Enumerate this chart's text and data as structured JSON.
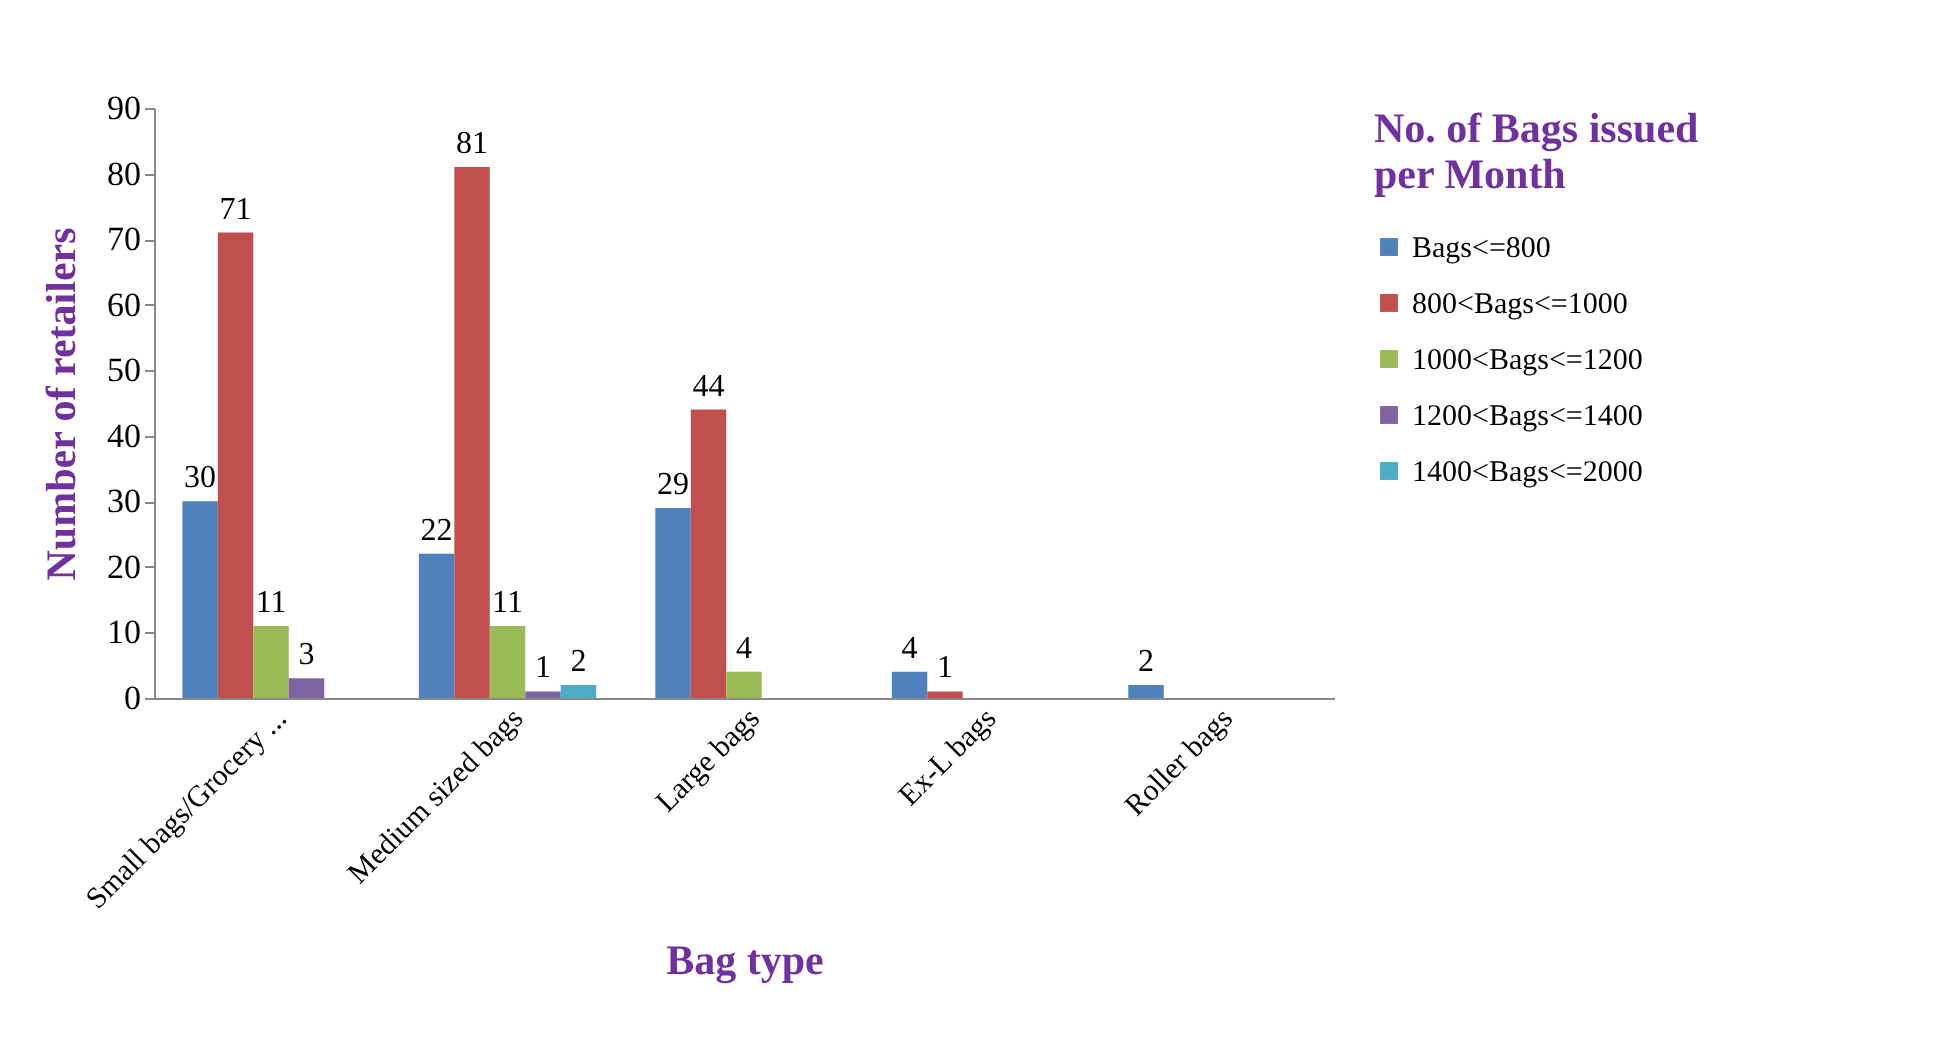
{
  "chart_data": {
    "type": "bar",
    "xlabel": "Bag type",
    "ylabel": "Number of retailers",
    "legend_title": "No. of Bags issued per Month",
    "categories": [
      "Small  bags/Grocery ...",
      "Medium sized bags",
      "Large bags",
      "Ex-L bags",
      "Roller bags"
    ],
    "series": [
      {
        "name": "Bags<=800",
        "color": "#4f81bd",
        "values": [
          30,
          22,
          29,
          4,
          2
        ]
      },
      {
        "name": "800<Bags<=1000",
        "color": "#c0504d",
        "values": [
          71,
          81,
          44,
          1,
          null
        ]
      },
      {
        "name": "1000<Bags<=1200",
        "color": "#9bbb59",
        "values": [
          11,
          11,
          4,
          null,
          null
        ]
      },
      {
        "name": "1200<Bags<=1400",
        "color": "#8064a2",
        "values": [
          3,
          1,
          null,
          null,
          null
        ]
      },
      {
        "name": "1400<Bags<=2000",
        "color": "#4bacc6",
        "values": [
          null,
          2,
          null,
          null,
          null
        ]
      }
    ],
    "ylim": [
      0,
      90
    ],
    "yticks": [
      0,
      10,
      20,
      30,
      40,
      50,
      60,
      70,
      80,
      90
    ],
    "grid": false,
    "legend": "right",
    "data_labels": true
  }
}
